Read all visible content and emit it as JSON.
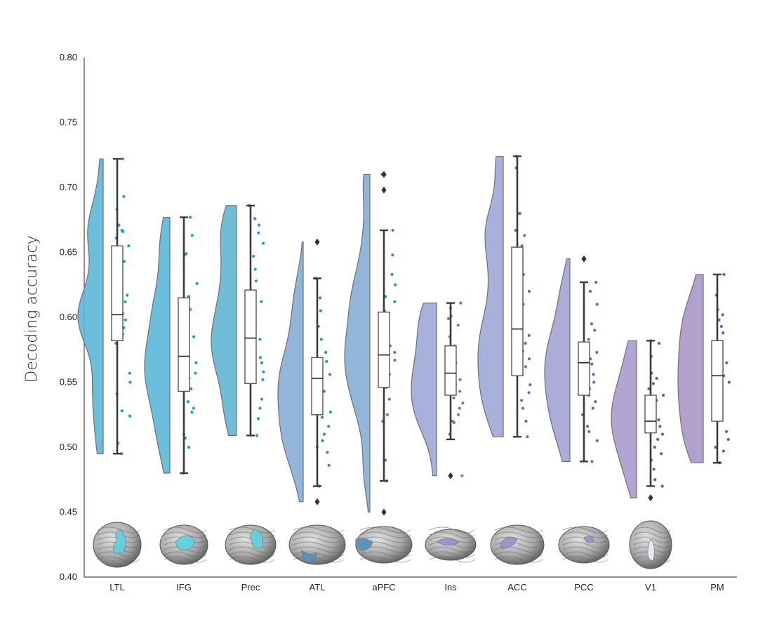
{
  "chart_data": {
    "type": "raincloud",
    "ylabel": "Decoding accuracy",
    "ylim": [
      0.4,
      0.8
    ],
    "yticks": [
      "0.40",
      "0.45",
      "0.50",
      "0.55",
      "0.60",
      "0.65",
      "0.70",
      "0.75",
      "0.80"
    ],
    "grid": false,
    "categories": [
      "LTL",
      "IFG",
      "Prec",
      "ATL",
      "aPFC",
      "Ins",
      "ACC",
      "PCC",
      "V1",
      "PM"
    ],
    "colors": [
      "#5bb8d8",
      "#5bb8d8",
      "#62b6d3",
      "#86aed6",
      "#86aed6",
      "#9ea7d8",
      "#9ea7d8",
      "#a2a3d4",
      "#aa9bcc",
      "#aa97c8"
    ],
    "dot_colors": [
      "#1a9ccf",
      "#1a9ccf",
      "#1a9ccf",
      "#2d8ac7",
      "#3a82c2",
      "#5a7fc4",
      "#5472c0",
      "#5a6ab8",
      "#6a55a8",
      "#7a4fa6"
    ],
    "roi_colors": [
      "#5fd0dc",
      "#5fd0dc",
      "#5fd0dc",
      "#5a8fb8",
      "#5a8fb8",
      "#9f8ccc",
      "#9f8ccc",
      "#9f8ccc",
      "#e8eef2",
      ""
    ],
    "series": [
      {
        "category": "LTL",
        "q1": 0.582,
        "median": 0.602,
        "q3": 0.655,
        "whisker_low": 0.495,
        "whisker_high": 0.722,
        "outliers": [],
        "points": [
          0.722,
          0.693,
          0.683,
          0.671,
          0.667,
          0.666,
          0.661,
          0.655,
          0.643,
          0.625,
          0.621,
          0.617,
          0.612,
          0.605,
          0.603,
          0.601,
          0.598,
          0.596,
          0.592,
          0.587,
          0.584,
          0.58,
          0.557,
          0.55,
          0.541,
          0.528,
          0.524,
          0.503,
          0.495
        ]
      },
      {
        "category": "IFG",
        "q1": 0.543,
        "median": 0.57,
        "q3": 0.615,
        "whisker_low": 0.48,
        "whisker_high": 0.677,
        "outliers": [],
        "points": [
          0.677,
          0.663,
          0.649,
          0.648,
          0.626,
          0.616,
          0.612,
          0.606,
          0.598,
          0.592,
          0.585,
          0.58,
          0.575,
          0.568,
          0.565,
          0.562,
          0.557,
          0.553,
          0.547,
          0.545,
          0.535,
          0.53,
          0.527,
          0.51,
          0.507,
          0.5,
          0.48
        ]
      },
      {
        "category": "Prec",
        "q1": 0.549,
        "median": 0.584,
        "q3": 0.621,
        "whisker_low": 0.509,
        "whisker_high": 0.686,
        "outliers": [],
        "points": [
          0.686,
          0.676,
          0.671,
          0.665,
          0.657,
          0.647,
          0.637,
          0.628,
          0.618,
          0.612,
          0.605,
          0.597,
          0.592,
          0.588,
          0.583,
          0.579,
          0.574,
          0.569,
          0.565,
          0.558,
          0.552,
          0.537,
          0.53,
          0.522,
          0.509
        ]
      },
      {
        "category": "ATL",
        "q1": 0.525,
        "median": 0.553,
        "q3": 0.569,
        "whisker_low": 0.47,
        "whisker_high": 0.63,
        "outliers": [
          0.658,
          0.458
        ],
        "points": [
          0.63,
          0.615,
          0.605,
          0.593,
          0.583,
          0.573,
          0.566,
          0.56,
          0.556,
          0.553,
          0.549,
          0.543,
          0.537,
          0.532,
          0.527,
          0.523,
          0.516,
          0.51,
          0.505,
          0.5,
          0.496,
          0.486,
          0.47
        ]
      },
      {
        "category": "aPFC",
        "q1": 0.546,
        "median": 0.571,
        "q3": 0.604,
        "whisker_low": 0.474,
        "whisker_high": 0.667,
        "outliers": [
          0.71,
          0.698,
          0.45
        ],
        "points": [
          0.71,
          0.698,
          0.667,
          0.648,
          0.633,
          0.625,
          0.616,
          0.612,
          0.605,
          0.597,
          0.59,
          0.581,
          0.578,
          0.573,
          0.567,
          0.562,
          0.556,
          0.55,
          0.546,
          0.537,
          0.52,
          0.525,
          0.49,
          0.474
        ]
      },
      {
        "category": "Ins",
        "q1": 0.54,
        "median": 0.557,
        "q3": 0.578,
        "whisker_low": 0.506,
        "whisker_high": 0.611,
        "outliers": [
          0.478
        ],
        "points": [
          0.611,
          0.607,
          0.601,
          0.599,
          0.594,
          0.585,
          0.578,
          0.57,
          0.565,
          0.56,
          0.556,
          0.552,
          0.548,
          0.543,
          0.538,
          0.534,
          0.53,
          0.525,
          0.52,
          0.519,
          0.51,
          0.478
        ]
      },
      {
        "category": "ACC",
        "q1": 0.555,
        "median": 0.591,
        "q3": 0.654,
        "whisker_low": 0.508,
        "whisker_high": 0.724,
        "outliers": [],
        "points": [
          0.724,
          0.715,
          0.68,
          0.68,
          0.667,
          0.663,
          0.655,
          0.645,
          0.633,
          0.62,
          0.61,
          0.598,
          0.592,
          0.586,
          0.58,
          0.574,
          0.568,
          0.562,
          0.556,
          0.548,
          0.542,
          0.536,
          0.53,
          0.52,
          0.508
        ]
      },
      {
        "category": "PCC",
        "q1": 0.54,
        "median": 0.565,
        "q3": 0.581,
        "whisker_low": 0.489,
        "whisker_high": 0.627,
        "outliers": [
          0.645
        ],
        "points": [
          0.627,
          0.62,
          0.61,
          0.595,
          0.59,
          0.583,
          0.578,
          0.573,
          0.568,
          0.564,
          0.56,
          0.556,
          0.55,
          0.545,
          0.54,
          0.535,
          0.53,
          0.525,
          0.516,
          0.512,
          0.505,
          0.489
        ]
      },
      {
        "category": "V1",
        "q1": 0.511,
        "median": 0.52,
        "q3": 0.54,
        "whisker_low": 0.47,
        "whisker_high": 0.582,
        "outliers": [
          0.461
        ],
        "points": [
          0.582,
          0.58,
          0.57,
          0.557,
          0.553,
          0.549,
          0.545,
          0.54,
          0.536,
          0.532,
          0.528,
          0.524,
          0.521,
          0.519,
          0.516,
          0.513,
          0.51,
          0.506,
          0.5,
          0.495,
          0.49,
          0.483,
          0.475,
          0.47
        ]
      },
      {
        "category": "PM",
        "q1": 0.52,
        "median": 0.555,
        "q3": 0.582,
        "whisker_low": 0.488,
        "whisker_high": 0.633,
        "outliers": [],
        "points": [
          0.633,
          0.617,
          0.606,
          0.602,
          0.598,
          0.593,
          0.588,
          0.58,
          0.575,
          0.57,
          0.565,
          0.56,
          0.555,
          0.55,
          0.545,
          0.54,
          0.535,
          0.53,
          0.524,
          0.52,
          0.512,
          0.506,
          0.5,
          0.497,
          0.488
        ]
      }
    ]
  }
}
